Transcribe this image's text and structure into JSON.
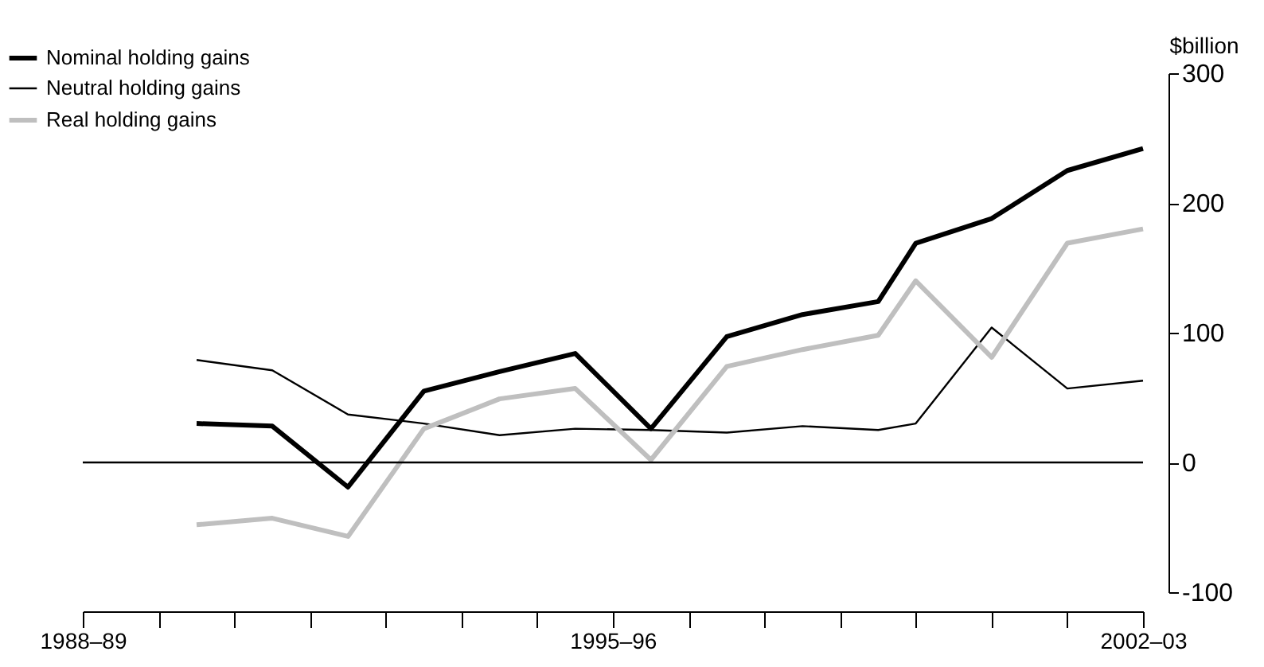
{
  "chart_data": {
    "type": "line",
    "ylabel": "$billion",
    "x": [
      "1990-01",
      "1991-01",
      "1992-01",
      "1993-01",
      "1994-01",
      "1995-01",
      "1996-01",
      "1997-01",
      "1998-01",
      "1999-01",
      "1999-07",
      "2000-07",
      "2001-07",
      "2002-07"
    ],
    "series": [
      {
        "name": "Nominal holding gains",
        "color": "#000000",
        "values": [
          30,
          28,
          -19,
          55,
          70,
          84,
          26,
          97,
          114,
          124,
          169,
          188,
          225,
          242
        ]
      },
      {
        "name": "Neutral holding gains",
        "color": "#000000",
        "values": [
          79,
          71,
          37,
          30,
          21,
          26,
          25,
          23,
          28,
          25,
          30,
          104,
          57,
          63
        ]
      },
      {
        "name": "Real holding gains",
        "color": "#bfbfbf",
        "values": [
          -48,
          -43,
          -57,
          26,
          49,
          57,
          2,
          74,
          87,
          98,
          140,
          81,
          169,
          180
        ]
      }
    ],
    "xlim": [
      "1988-07",
      "2002-07"
    ],
    "xticks": [
      {
        "value": "1988-07",
        "label": "1988–89"
      },
      {
        "value": "1989-07",
        "label": null
      },
      {
        "value": "1990-07",
        "label": null
      },
      {
        "value": "1991-07",
        "label": null
      },
      {
        "value": "1992-07",
        "label": null
      },
      {
        "value": "1993-07",
        "label": null
      },
      {
        "value": "1994-07",
        "label": null
      },
      {
        "value": "1995-07",
        "label": "1995–96"
      },
      {
        "value": "1996-07",
        "label": null
      },
      {
        "value": "1997-07",
        "label": null
      },
      {
        "value": "1998-07",
        "label": null
      },
      {
        "value": "1999-07",
        "label": null
      },
      {
        "value": "2000-07",
        "label": null
      },
      {
        "value": "2001-07",
        "label": null
      },
      {
        "value": "2002-07",
        "label": "2002–03"
      }
    ],
    "ylim": [
      -100,
      300
    ],
    "yticks": [
      -100,
      0,
      100,
      200,
      300
    ],
    "ref_lines": [
      {
        "axis": "y",
        "value": 0,
        "color": "#000000"
      }
    ],
    "grid": false,
    "legend": "top left"
  }
}
